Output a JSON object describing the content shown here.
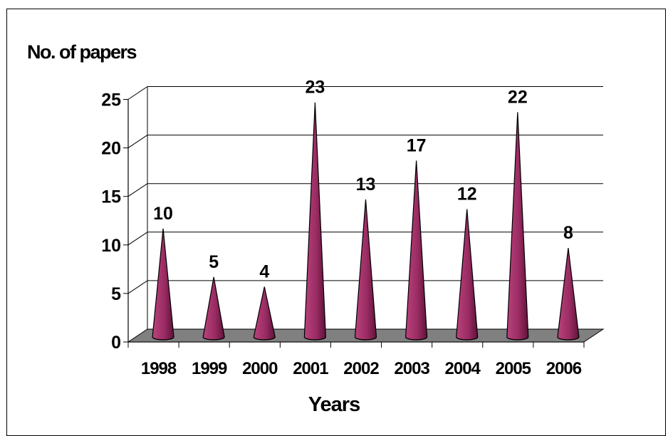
{
  "chart_data": {
    "type": "bar",
    "bar_shape": "cone",
    "ylabel": "No. of papers",
    "xlabel": "Years",
    "categories": [
      "1998",
      "1999",
      "2000",
      "2001",
      "2002",
      "2003",
      "2004",
      "2005",
      "2006"
    ],
    "values": [
      10,
      5,
      4,
      23,
      13,
      17,
      12,
      22,
      8
    ],
    "data_labels": [
      "10",
      "5",
      "4",
      "23",
      "13",
      "17",
      "12",
      "22",
      "8"
    ],
    "yticks": [
      "0",
      "5",
      "10",
      "15",
      "20",
      "25"
    ],
    "ylim": [
      0,
      25
    ],
    "grid": true,
    "colors": {
      "bar": "#9b2c63",
      "bar_dark": "#5e1239",
      "floor": "#808080"
    }
  }
}
